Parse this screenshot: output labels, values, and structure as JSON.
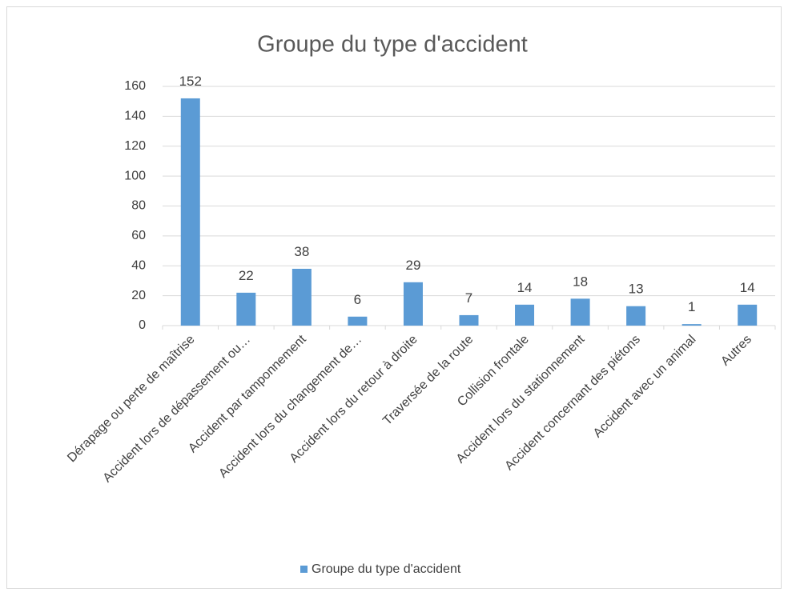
{
  "chart_data": {
    "type": "bar",
    "title": "Groupe du type d'accident",
    "categories": [
      "Dérapage ou perte de maîtrise",
      "Accident lors de dépassement ou…",
      "Accident par tamponnement",
      "Accident lors du changement de…",
      "Accident lors du retour à droite",
      "Traversée de la route",
      "Collision frontale",
      "Accident lors du stationnement",
      "Accident concernant des piétons",
      "Accident avec un animal",
      "Autres"
    ],
    "series": [
      {
        "name": "Groupe du type d'accident",
        "color": "#5b9bd5",
        "values": [
          152,
          22,
          38,
          6,
          29,
          7,
          14,
          18,
          13,
          1,
          14
        ]
      }
    ],
    "ylim": [
      0,
      160
    ],
    "yticks": [
      0,
      20,
      40,
      60,
      80,
      100,
      120,
      140,
      160
    ],
    "grid": true,
    "legend": "bottom"
  }
}
